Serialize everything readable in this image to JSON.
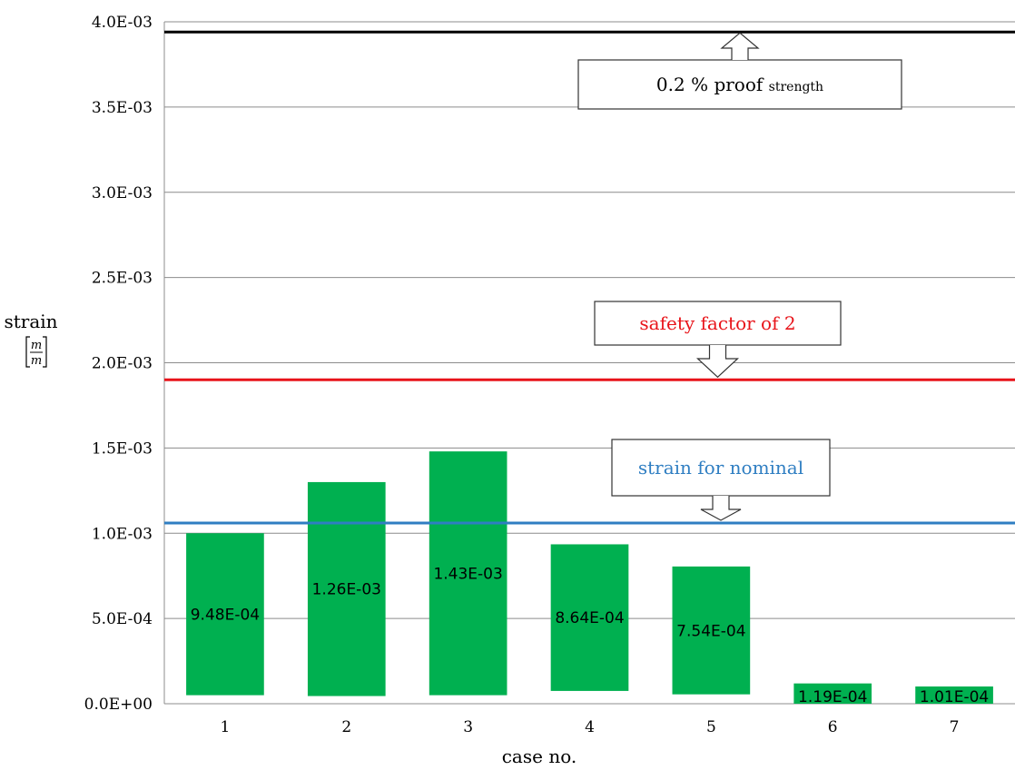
{
  "chart_data": {
    "type": "bar",
    "xlabel": "case no.",
    "ylabel": "strain",
    "ylabel_unit": {
      "numerator": "m",
      "denominator": "m"
    },
    "categories": [
      "1",
      "2",
      "3",
      "4",
      "5",
      "6",
      "7"
    ],
    "bar_low": [
      5e-05,
      4.5e-05,
      5e-05,
      7.5e-05,
      5.5e-05,
      0.0,
      0.0
    ],
    "bar_high": [
      0.001,
      0.0013,
      0.00148,
      0.000935,
      0.000805,
      0.000119,
      0.000101
    ],
    "data_labels": [
      "9.48E-04",
      "1.26E-03",
      "1.43E-03",
      "8.64E-04",
      "7.54E-04",
      "1.19E-04",
      "1.01E-04"
    ],
    "bar_color": "#00b050",
    "ylim": [
      0,
      0.004
    ],
    "yticks": [
      0,
      0.0005,
      0.001,
      0.0015,
      0.002,
      0.0025,
      0.003,
      0.0035,
      0.004
    ],
    "ytick_labels": [
      "0.0E+00",
      "5.0E-04",
      "1.0E-03",
      "1.5E-03",
      "2.0E-03",
      "2.5E-03",
      "3.0E-03",
      "3.5E-03",
      "4.0E-03"
    ],
    "grid": true,
    "reference_lines": [
      {
        "value": 0.00394,
        "color": "#000000",
        "label_main": "0.2 % proof ",
        "label_small": "strength",
        "label_color": "#000000"
      },
      {
        "value": 0.0019,
        "color": "#e8141a",
        "label_main": "safety factor of 2",
        "label_small": "",
        "label_color": "#e8141a"
      },
      {
        "value": 0.00106,
        "color": "#2f7ec2",
        "label_main": "strain for nominal",
        "label_small": "",
        "label_color": "#2f7ec2"
      }
    ]
  }
}
